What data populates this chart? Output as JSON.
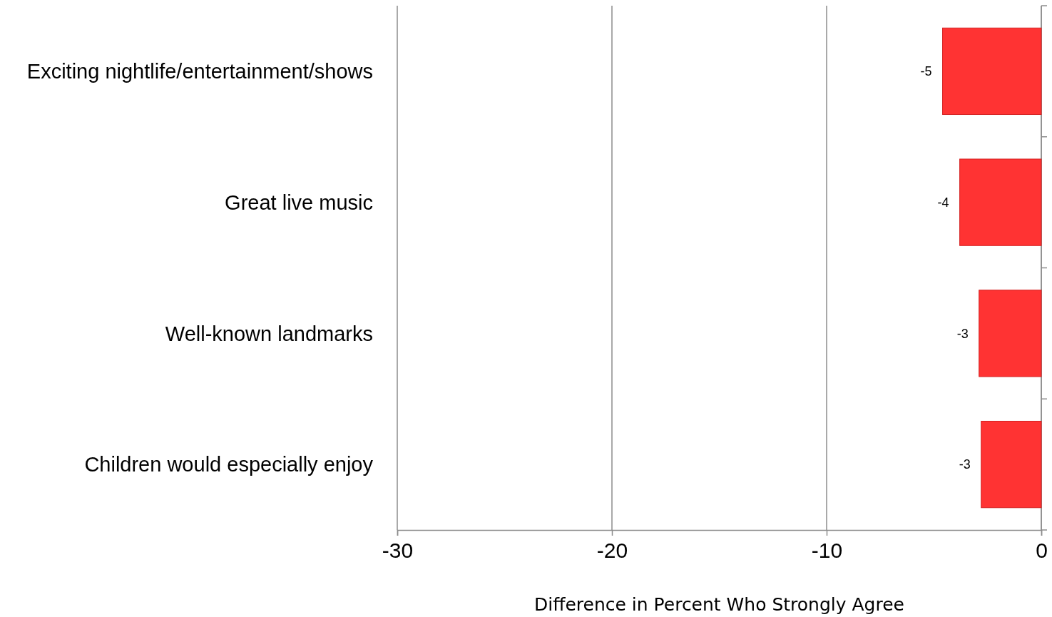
{
  "chart_data": {
    "type": "bar",
    "orientation": "horizontal",
    "categories": [
      "Exciting nightlife/entertainment/shows",
      "Great live music",
      "Well-known landmarks",
      "Children would especially enjoy"
    ],
    "values": [
      -4.6,
      -3.8,
      -2.9,
      -2.8
    ],
    "value_labels": [
      "-5",
      "-4",
      "-3",
      "-3"
    ],
    "color": "#ff3333",
    "xlim": [
      -30,
      0
    ],
    "xticks": [
      -30,
      -20,
      -10,
      0
    ],
    "xlabel": "Difference in Percent Who Strongly Agree",
    "grid": "x"
  }
}
